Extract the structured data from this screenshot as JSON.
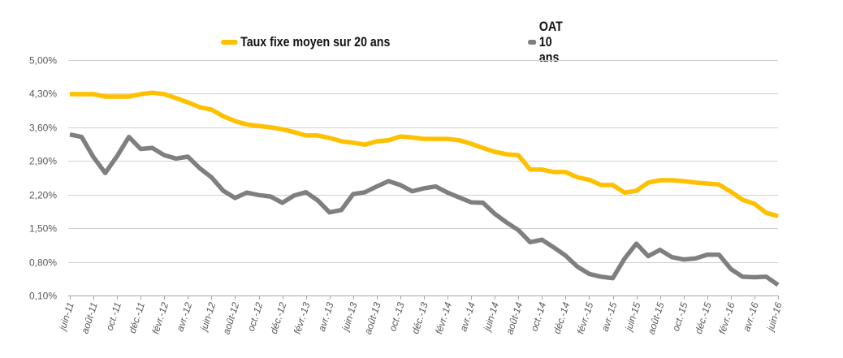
{
  "chart_data": {
    "type": "line",
    "title": "",
    "xlabel": "",
    "ylabel": "",
    "ylim": [
      0.1,
      5.0
    ],
    "yticks": [
      "5,00%",
      "4,30%",
      "3,60%",
      "2,90%",
      "2,20%",
      "1,50%",
      "0,80%",
      "0,10%"
    ],
    "ytick_values": [
      5.0,
      4.3,
      3.6,
      2.9,
      2.2,
      1.5,
      0.8,
      0.1
    ],
    "grid": "horizontal",
    "legend_position": "top",
    "x": [
      "juin-11",
      "juil.-11",
      "août-11",
      "sept.-11",
      "oct.-11",
      "nov.-11",
      "déc.-11",
      "janv.-12",
      "févr.-12",
      "mars-12",
      "avr.-12",
      "mai-12",
      "juin-12",
      "juil.-12",
      "août-12",
      "sept.-12",
      "oct.-12",
      "nov.-12",
      "déc.-12",
      "janv.-13",
      "févr.-13",
      "mars-13",
      "avr.-13",
      "mai-13",
      "juin-13",
      "juil.-13",
      "août-13",
      "sept.-13",
      "oct.-13",
      "nov.-13",
      "déc.-13",
      "janv.-14",
      "févr.-14",
      "mars-14",
      "avr.-14",
      "mai-14",
      "juin-14",
      "juil.-14",
      "août-14",
      "sept.-14",
      "oct.-14",
      "nov.-14",
      "déc.-14",
      "janv.-15",
      "févr.-15",
      "mars-15",
      "avr.-15",
      "mai-15",
      "juin-15",
      "juil.-15",
      "août-15",
      "sept.-15",
      "oct.-15",
      "nov.-15",
      "déc.-15",
      "janv.-16",
      "févr.-16",
      "mars-16",
      "avr.-16",
      "mai-16",
      "juin-16"
    ],
    "xtick_labels": [
      "juin-11",
      "août-11",
      "oct.-11",
      "déc.-11",
      "févr.-12",
      "avr.-12",
      "juin-12",
      "août-12",
      "oct.-12",
      "déc.-12",
      "févr.-13",
      "avr.-13",
      "juin-13",
      "août-13",
      "oct.-13",
      "déc.-13",
      "févr.-14",
      "avr.-14",
      "juin-14",
      "août-14",
      "oct.-14",
      "déc.-14",
      "févr.-15",
      "avr.-15",
      "juin-15",
      "août-15",
      "oct.-15",
      "déc.-15",
      "févr.-16",
      "avr.-16",
      "juin-16"
    ],
    "series": [
      {
        "name": "Taux fixe moyen sur 20 ans",
        "color": "#FFC000",
        "values": [
          4.29,
          4.29,
          4.29,
          4.24,
          4.24,
          4.24,
          4.29,
          4.32,
          4.29,
          4.21,
          4.12,
          4.02,
          3.97,
          3.83,
          3.73,
          3.66,
          3.63,
          3.6,
          3.56,
          3.5,
          3.43,
          3.43,
          3.38,
          3.31,
          3.28,
          3.24,
          3.31,
          3.33,
          3.41,
          3.39,
          3.36,
          3.36,
          3.36,
          3.33,
          3.26,
          3.17,
          3.09,
          3.04,
          3.02,
          2.72,
          2.72,
          2.67,
          2.67,
          2.56,
          2.51,
          2.4,
          2.4,
          2.24,
          2.28,
          2.45,
          2.5,
          2.5,
          2.48,
          2.45,
          2.43,
          2.41,
          2.26,
          2.09,
          2.01,
          1.82,
          1.75
        ]
      },
      {
        "name": "OAT 10 ans",
        "color": "#7F7F7F",
        "values": [
          3.45,
          3.4,
          2.98,
          2.65,
          3.0,
          3.4,
          3.15,
          3.17,
          3.02,
          2.95,
          2.99,
          2.75,
          2.56,
          2.28,
          2.13,
          2.24,
          2.19,
          2.16,
          2.03,
          2.18,
          2.25,
          2.08,
          1.83,
          1.88,
          2.21,
          2.25,
          2.37,
          2.48,
          2.4,
          2.27,
          2.33,
          2.37,
          2.24,
          2.14,
          2.04,
          2.03,
          1.8,
          1.62,
          1.46,
          1.21,
          1.26,
          1.1,
          0.93,
          0.7,
          0.55,
          0.49,
          0.46,
          0.87,
          1.18,
          0.92,
          1.05,
          0.9,
          0.85,
          0.87,
          0.95,
          0.95,
          0.65,
          0.49,
          0.48,
          0.49,
          0.32
        ]
      }
    ]
  },
  "legend": [
    {
      "label": "Taux fixe moyen sur 20 ans",
      "color": "#FFC000"
    },
    {
      "label": "OAT 10 ans",
      "color": "#7F7F7F"
    }
  ]
}
